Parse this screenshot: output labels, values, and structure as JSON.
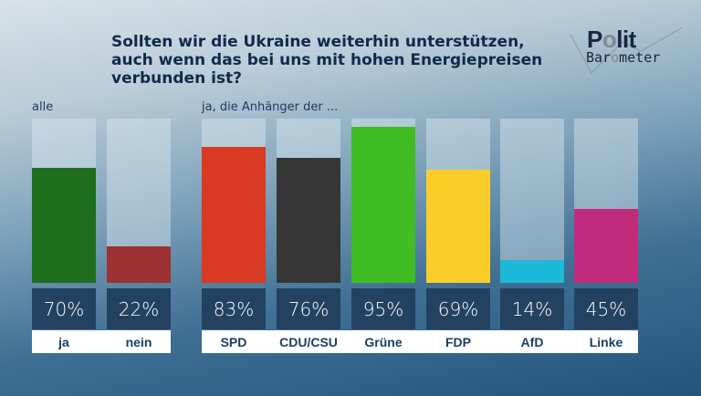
{
  "chart_data": {
    "type": "bar",
    "title": "Sollten wir die Ukraine weiterhin unterstützen, auch wenn das bei uns mit hohen Energiepreisen verbunden ist?",
    "title_lines": [
      "Sollten wir die Ukraine weiterhin unterstützen,",
      "auch wenn das bei uns mit hohen Energiepreisen",
      "verbunden ist?"
    ],
    "ylim": [
      0,
      100
    ],
    "unit": "%",
    "groups": [
      {
        "label": "alle",
        "categories": [
          "ja",
          "nein"
        ],
        "values": [
          70,
          22
        ],
        "colors": [
          "#1e6e1e",
          "#9c3232"
        ]
      },
      {
        "label": "ja, die Anhänger der ...",
        "categories": [
          "SPD",
          "CDU/CSU",
          "Grüne",
          "FDP",
          "AfD",
          "Linke"
        ],
        "values": [
          83,
          76,
          95,
          69,
          14,
          45
        ],
        "colors": [
          "#d93a24",
          "#363636",
          "#3fbd22",
          "#fbcd2b",
          "#1db9d9",
          "#c12b7c"
        ]
      }
    ]
  },
  "logo": {
    "line1_pre": "P",
    "line1_o": "o",
    "line1_post": "lit",
    "line2_pre": "Bar",
    "line2_o": "o",
    "line2_post": "meter"
  }
}
